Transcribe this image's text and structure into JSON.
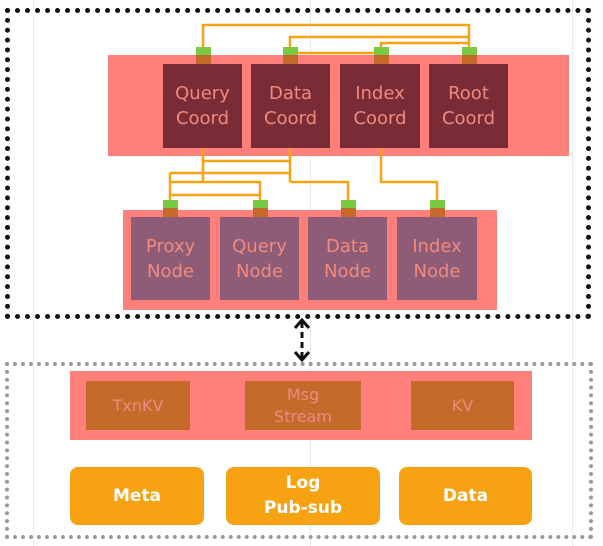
{
  "coordinators": [
    {
      "label": "Query\nCoord"
    },
    {
      "label": "Data\nCoord"
    },
    {
      "label": "Index\nCoord"
    },
    {
      "label": "Root\nCoord"
    }
  ],
  "nodes": [
    {
      "label": "Proxy\nNode"
    },
    {
      "label": "Query\nNode"
    },
    {
      "label": "Data\nNode"
    },
    {
      "label": "Index\nNode"
    }
  ],
  "storage_services": [
    {
      "label": "TxnKV"
    },
    {
      "label": "Msg\nStream"
    },
    {
      "label": "KV"
    }
  ],
  "storage_layers": [
    {
      "label": "Meta"
    },
    {
      "label": "Log\nPub-sub"
    },
    {
      "label": "Data"
    }
  ],
  "colors": {
    "band": "#ff807a",
    "coord": "#7a2c36",
    "node": "#8f5c78",
    "storage_service": "#c46a2a",
    "storage_layer": "#f6a213",
    "connector": "#f6a213",
    "port": "#7ac943"
  }
}
